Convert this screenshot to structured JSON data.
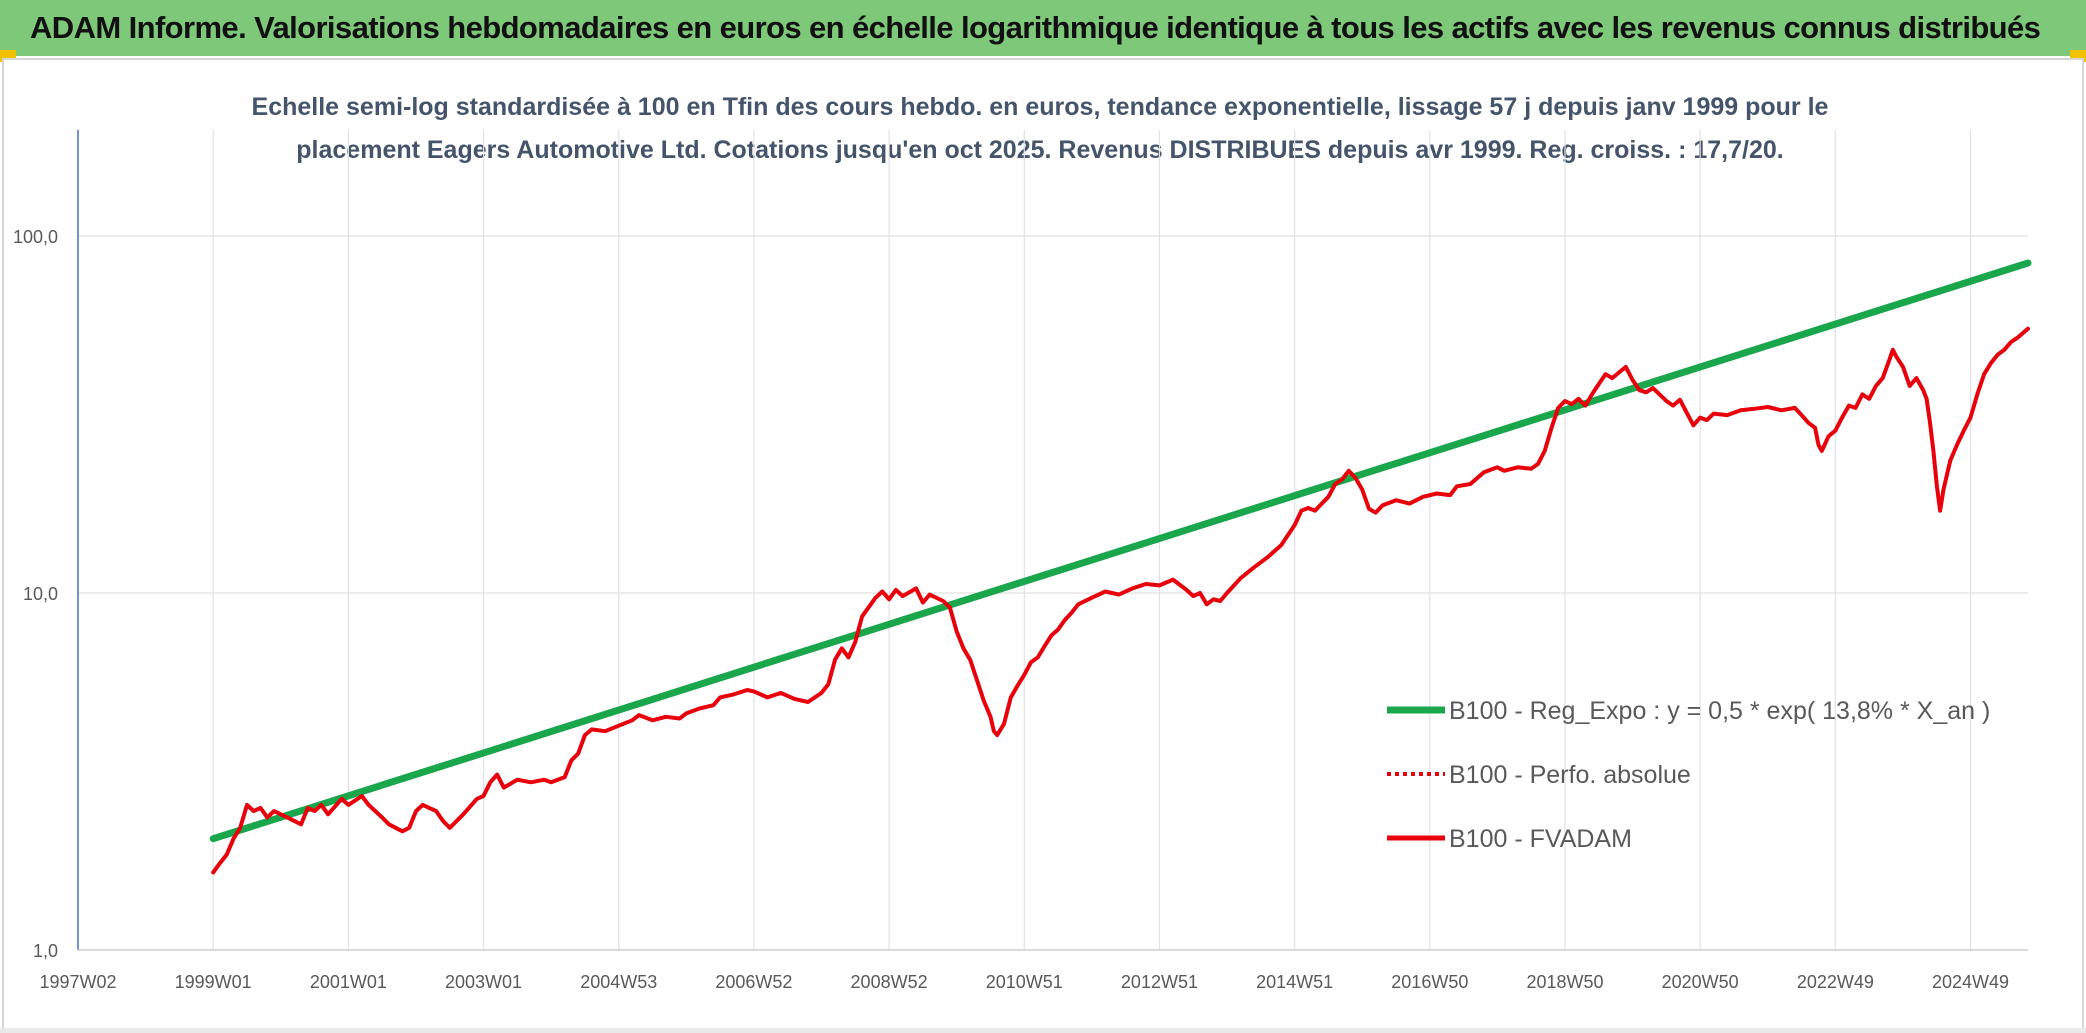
{
  "banner": {
    "title": "ADAM Informe. Valorisations hebdomadaires en euros en échelle logarithmique identique à tous les actifs avec les revenus connus distribués"
  },
  "colors": {
    "banner": "#7ec87a",
    "accent": "#f2c200",
    "regression": "#1aa64b",
    "fvadam": "#e8000b",
    "perfo": "#e8000b",
    "grid": "#e1e1e1",
    "axis": "#4472c4"
  },
  "chart_data": {
    "type": "line",
    "title": "",
    "subtitle_lines": [
      "Echelle semi-log standardisée à 100 en Tfin des cours hebdo. en euros, tendance exponentielle, lissage 57 j depuis janv 1999 pour le",
      "placement Eagers Automotive Ltd. Cotations jusqu'en oct 2025. Revenus DISTRIBUES depuis avr 1999. Reg. croiss. : 17,7/20."
    ],
    "y_scale": "log",
    "ylim": [
      1,
      200
    ],
    "y_ticks": [
      {
        "value": 1,
        "label": "1,0"
      },
      {
        "value": 10,
        "label": "10,0"
      },
      {
        "value": 100,
        "label": "100,0"
      }
    ],
    "xlim": [
      1997.0,
      2025.85
    ],
    "x_ticks": [
      {
        "year": 1997.0,
        "label": "1997W02"
      },
      {
        "year": 1999.0,
        "label": "1999W01"
      },
      {
        "year": 2001.0,
        "label": "2001W01"
      },
      {
        "year": 2003.0,
        "label": "2003W01"
      },
      {
        "year": 2005.0,
        "label": "2004W53"
      },
      {
        "year": 2007.0,
        "label": "2006W52"
      },
      {
        "year": 2009.0,
        "label": "2008W52"
      },
      {
        "year": 2011.0,
        "label": "2010W51"
      },
      {
        "year": 2013.0,
        "label": "2012W51"
      },
      {
        "year": 2015.0,
        "label": "2014W51"
      },
      {
        "year": 2017.0,
        "label": "2016W50"
      },
      {
        "year": 2019.0,
        "label": "2018W50"
      },
      {
        "year": 2021.0,
        "label": "2020W50"
      },
      {
        "year": 2023.0,
        "label": "2022W49"
      },
      {
        "year": 2025.0,
        "label": "2024W49"
      }
    ],
    "legend_position": "right",
    "grid": true,
    "series": [
      {
        "name": "B100 - Reg_Expo : y = 0,5 * exp( 13,8% *  X_an )",
        "style": "solid-thick",
        "color": "#1aa64b",
        "points": [
          [
            1999.0,
            2.05
          ],
          [
            2025.85,
            84.0
          ]
        ]
      },
      {
        "name": "B100 - Perfo. absolue",
        "style": "dotted",
        "color": "#e8000b",
        "points": []
      },
      {
        "name": "B100 - FVADAM",
        "style": "solid",
        "color": "#e8000b",
        "points": [
          [
            1999.0,
            1.65
          ],
          [
            1999.1,
            1.75
          ],
          [
            1999.2,
            1.85
          ],
          [
            1999.3,
            2.05
          ],
          [
            1999.4,
            2.2
          ],
          [
            1999.5,
            2.55
          ],
          [
            1999.6,
            2.45
          ],
          [
            1999.7,
            2.5
          ],
          [
            1999.8,
            2.35
          ],
          [
            1999.9,
            2.45
          ],
          [
            2000.0,
            2.4
          ],
          [
            2000.2,
            2.3
          ],
          [
            2000.3,
            2.25
          ],
          [
            2000.4,
            2.5
          ],
          [
            2000.5,
            2.45
          ],
          [
            2000.6,
            2.55
          ],
          [
            2000.7,
            2.4
          ],
          [
            2000.9,
            2.65
          ],
          [
            2001.0,
            2.55
          ],
          [
            2001.2,
            2.7
          ],
          [
            2001.3,
            2.55
          ],
          [
            2001.5,
            2.35
          ],
          [
            2001.6,
            2.25
          ],
          [
            2001.8,
            2.15
          ],
          [
            2001.9,
            2.2
          ],
          [
            2002.0,
            2.45
          ],
          [
            2002.1,
            2.55
          ],
          [
            2002.3,
            2.45
          ],
          [
            2002.4,
            2.3
          ],
          [
            2002.5,
            2.2
          ],
          [
            2002.7,
            2.4
          ],
          [
            2002.9,
            2.65
          ],
          [
            2003.0,
            2.7
          ],
          [
            2003.1,
            2.95
          ],
          [
            2003.2,
            3.1
          ],
          [
            2003.3,
            2.85
          ],
          [
            2003.5,
            3.0
          ],
          [
            2003.7,
            2.95
          ],
          [
            2003.9,
            3.0
          ],
          [
            2004.0,
            2.95
          ],
          [
            2004.2,
            3.05
          ],
          [
            2004.3,
            3.4
          ],
          [
            2004.4,
            3.55
          ],
          [
            2004.5,
            4.0
          ],
          [
            2004.6,
            4.15
          ],
          [
            2004.8,
            4.1
          ],
          [
            2005.0,
            4.25
          ],
          [
            2005.2,
            4.4
          ],
          [
            2005.3,
            4.55
          ],
          [
            2005.5,
            4.4
          ],
          [
            2005.7,
            4.5
          ],
          [
            2005.9,
            4.45
          ],
          [
            2006.0,
            4.6
          ],
          [
            2006.2,
            4.75
          ],
          [
            2006.4,
            4.85
          ],
          [
            2006.5,
            5.1
          ],
          [
            2006.7,
            5.2
          ],
          [
            2006.9,
            5.35
          ],
          [
            2007.0,
            5.3
          ],
          [
            2007.2,
            5.1
          ],
          [
            2007.4,
            5.25
          ],
          [
            2007.6,
            5.05
          ],
          [
            2007.8,
            4.95
          ],
          [
            2008.0,
            5.25
          ],
          [
            2008.1,
            5.55
          ],
          [
            2008.2,
            6.5
          ],
          [
            2008.3,
            7.0
          ],
          [
            2008.4,
            6.6
          ],
          [
            2008.5,
            7.3
          ],
          [
            2008.6,
            8.6
          ],
          [
            2008.8,
            9.7
          ],
          [
            2008.9,
            10.1
          ],
          [
            2009.0,
            9.6
          ],
          [
            2009.1,
            10.2
          ],
          [
            2009.2,
            9.8
          ],
          [
            2009.4,
            10.3
          ],
          [
            2009.5,
            9.4
          ],
          [
            2009.6,
            9.9
          ],
          [
            2009.8,
            9.5
          ],
          [
            2009.9,
            9.1
          ],
          [
            2010.0,
            7.8
          ],
          [
            2010.1,
            7.0
          ],
          [
            2010.2,
            6.5
          ],
          [
            2010.3,
            5.7
          ],
          [
            2010.4,
            5.0
          ],
          [
            2010.5,
            4.5
          ],
          [
            2010.55,
            4.1
          ],
          [
            2010.6,
            4.0
          ],
          [
            2010.7,
            4.3
          ],
          [
            2010.8,
            5.1
          ],
          [
            2010.9,
            5.5
          ],
          [
            2011.0,
            5.9
          ],
          [
            2011.1,
            6.4
          ],
          [
            2011.2,
            6.6
          ],
          [
            2011.3,
            7.1
          ],
          [
            2011.4,
            7.6
          ],
          [
            2011.5,
            7.9
          ],
          [
            2011.6,
            8.4
          ],
          [
            2011.7,
            8.8
          ],
          [
            2011.8,
            9.3
          ],
          [
            2012.0,
            9.7
          ],
          [
            2012.2,
            10.1
          ],
          [
            2012.4,
            9.9
          ],
          [
            2012.6,
            10.3
          ],
          [
            2012.8,
            10.6
          ],
          [
            2013.0,
            10.5
          ],
          [
            2013.2,
            10.9
          ],
          [
            2013.4,
            10.2
          ],
          [
            2013.5,
            9.8
          ],
          [
            2013.6,
            10.0
          ],
          [
            2013.7,
            9.3
          ],
          [
            2013.8,
            9.6
          ],
          [
            2013.9,
            9.5
          ],
          [
            2014.0,
            10.0
          ],
          [
            2014.2,
            11.0
          ],
          [
            2014.4,
            11.8
          ],
          [
            2014.6,
            12.6
          ],
          [
            2014.8,
            13.6
          ],
          [
            2015.0,
            15.5
          ],
          [
            2015.1,
            17.0
          ],
          [
            2015.2,
            17.3
          ],
          [
            2015.3,
            17.0
          ],
          [
            2015.5,
            18.6
          ],
          [
            2015.6,
            20.2
          ],
          [
            2015.7,
            20.8
          ],
          [
            2015.8,
            22.0
          ],
          [
            2015.9,
            21.0
          ],
          [
            2016.0,
            19.5
          ],
          [
            2016.1,
            17.2
          ],
          [
            2016.2,
            16.8
          ],
          [
            2016.3,
            17.6
          ],
          [
            2016.5,
            18.2
          ],
          [
            2016.7,
            17.8
          ],
          [
            2016.9,
            18.6
          ],
          [
            2017.1,
            19.0
          ],
          [
            2017.3,
            18.8
          ],
          [
            2017.4,
            19.9
          ],
          [
            2017.6,
            20.2
          ],
          [
            2017.8,
            21.8
          ],
          [
            2018.0,
            22.5
          ],
          [
            2018.1,
            22.0
          ],
          [
            2018.3,
            22.5
          ],
          [
            2018.5,
            22.3
          ],
          [
            2018.6,
            23.0
          ],
          [
            2018.7,
            25.0
          ],
          [
            2018.8,
            29.0
          ],
          [
            2018.9,
            33.0
          ],
          [
            2019.0,
            34.5
          ],
          [
            2019.1,
            33.8
          ],
          [
            2019.2,
            35.0
          ],
          [
            2019.3,
            33.5
          ],
          [
            2019.4,
            36.0
          ],
          [
            2019.5,
            38.5
          ],
          [
            2019.6,
            41.0
          ],
          [
            2019.7,
            40.0
          ],
          [
            2019.8,
            41.5
          ],
          [
            2019.9,
            43.0
          ],
          [
            2020.0,
            39.5
          ],
          [
            2020.1,
            37.0
          ],
          [
            2020.2,
            36.5
          ],
          [
            2020.3,
            37.5
          ],
          [
            2020.4,
            36.0
          ],
          [
            2020.5,
            34.5
          ],
          [
            2020.6,
            33.5
          ],
          [
            2020.7,
            34.8
          ],
          [
            2020.8,
            32.0
          ],
          [
            2020.9,
            29.5
          ],
          [
            2021.0,
            31.0
          ],
          [
            2021.1,
            30.5
          ],
          [
            2021.2,
            31.8
          ],
          [
            2021.4,
            31.5
          ],
          [
            2021.6,
            32.5
          ],
          [
            2021.8,
            32.8
          ],
          [
            2022.0,
            33.2
          ],
          [
            2022.2,
            32.5
          ],
          [
            2022.4,
            33.0
          ],
          [
            2022.5,
            31.5
          ],
          [
            2022.6,
            30.0
          ],
          [
            2022.7,
            29.0
          ],
          [
            2022.75,
            26.0
          ],
          [
            2022.8,
            25.0
          ],
          [
            2022.9,
            27.5
          ],
          [
            2023.0,
            28.5
          ],
          [
            2023.1,
            31.0
          ],
          [
            2023.2,
            33.5
          ],
          [
            2023.3,
            33.0
          ],
          [
            2023.4,
            36.0
          ],
          [
            2023.5,
            35.0
          ],
          [
            2023.6,
            38.0
          ],
          [
            2023.7,
            40.0
          ],
          [
            2023.8,
            45.0
          ],
          [
            2023.85,
            48.0
          ],
          [
            2023.9,
            46.0
          ],
          [
            2024.0,
            43.0
          ],
          [
            2024.1,
            38.0
          ],
          [
            2024.2,
            40.0
          ],
          [
            2024.3,
            37.0
          ],
          [
            2024.35,
            35.0
          ],
          [
            2024.4,
            30.0
          ],
          [
            2024.45,
            25.0
          ],
          [
            2024.5,
            20.0
          ],
          [
            2024.55,
            17.0
          ],
          [
            2024.6,
            19.5
          ],
          [
            2024.7,
            23.5
          ],
          [
            2024.8,
            26.0
          ],
          [
            2024.9,
            28.5
          ],
          [
            2025.0,
            31.0
          ],
          [
            2025.1,
            36.0
          ],
          [
            2025.2,
            41.0
          ],
          [
            2025.3,
            44.0
          ],
          [
            2025.4,
            46.5
          ],
          [
            2025.5,
            48.0
          ],
          [
            2025.6,
            50.5
          ],
          [
            2025.7,
            52.0
          ],
          [
            2025.85,
            55.0
          ]
        ]
      }
    ]
  }
}
